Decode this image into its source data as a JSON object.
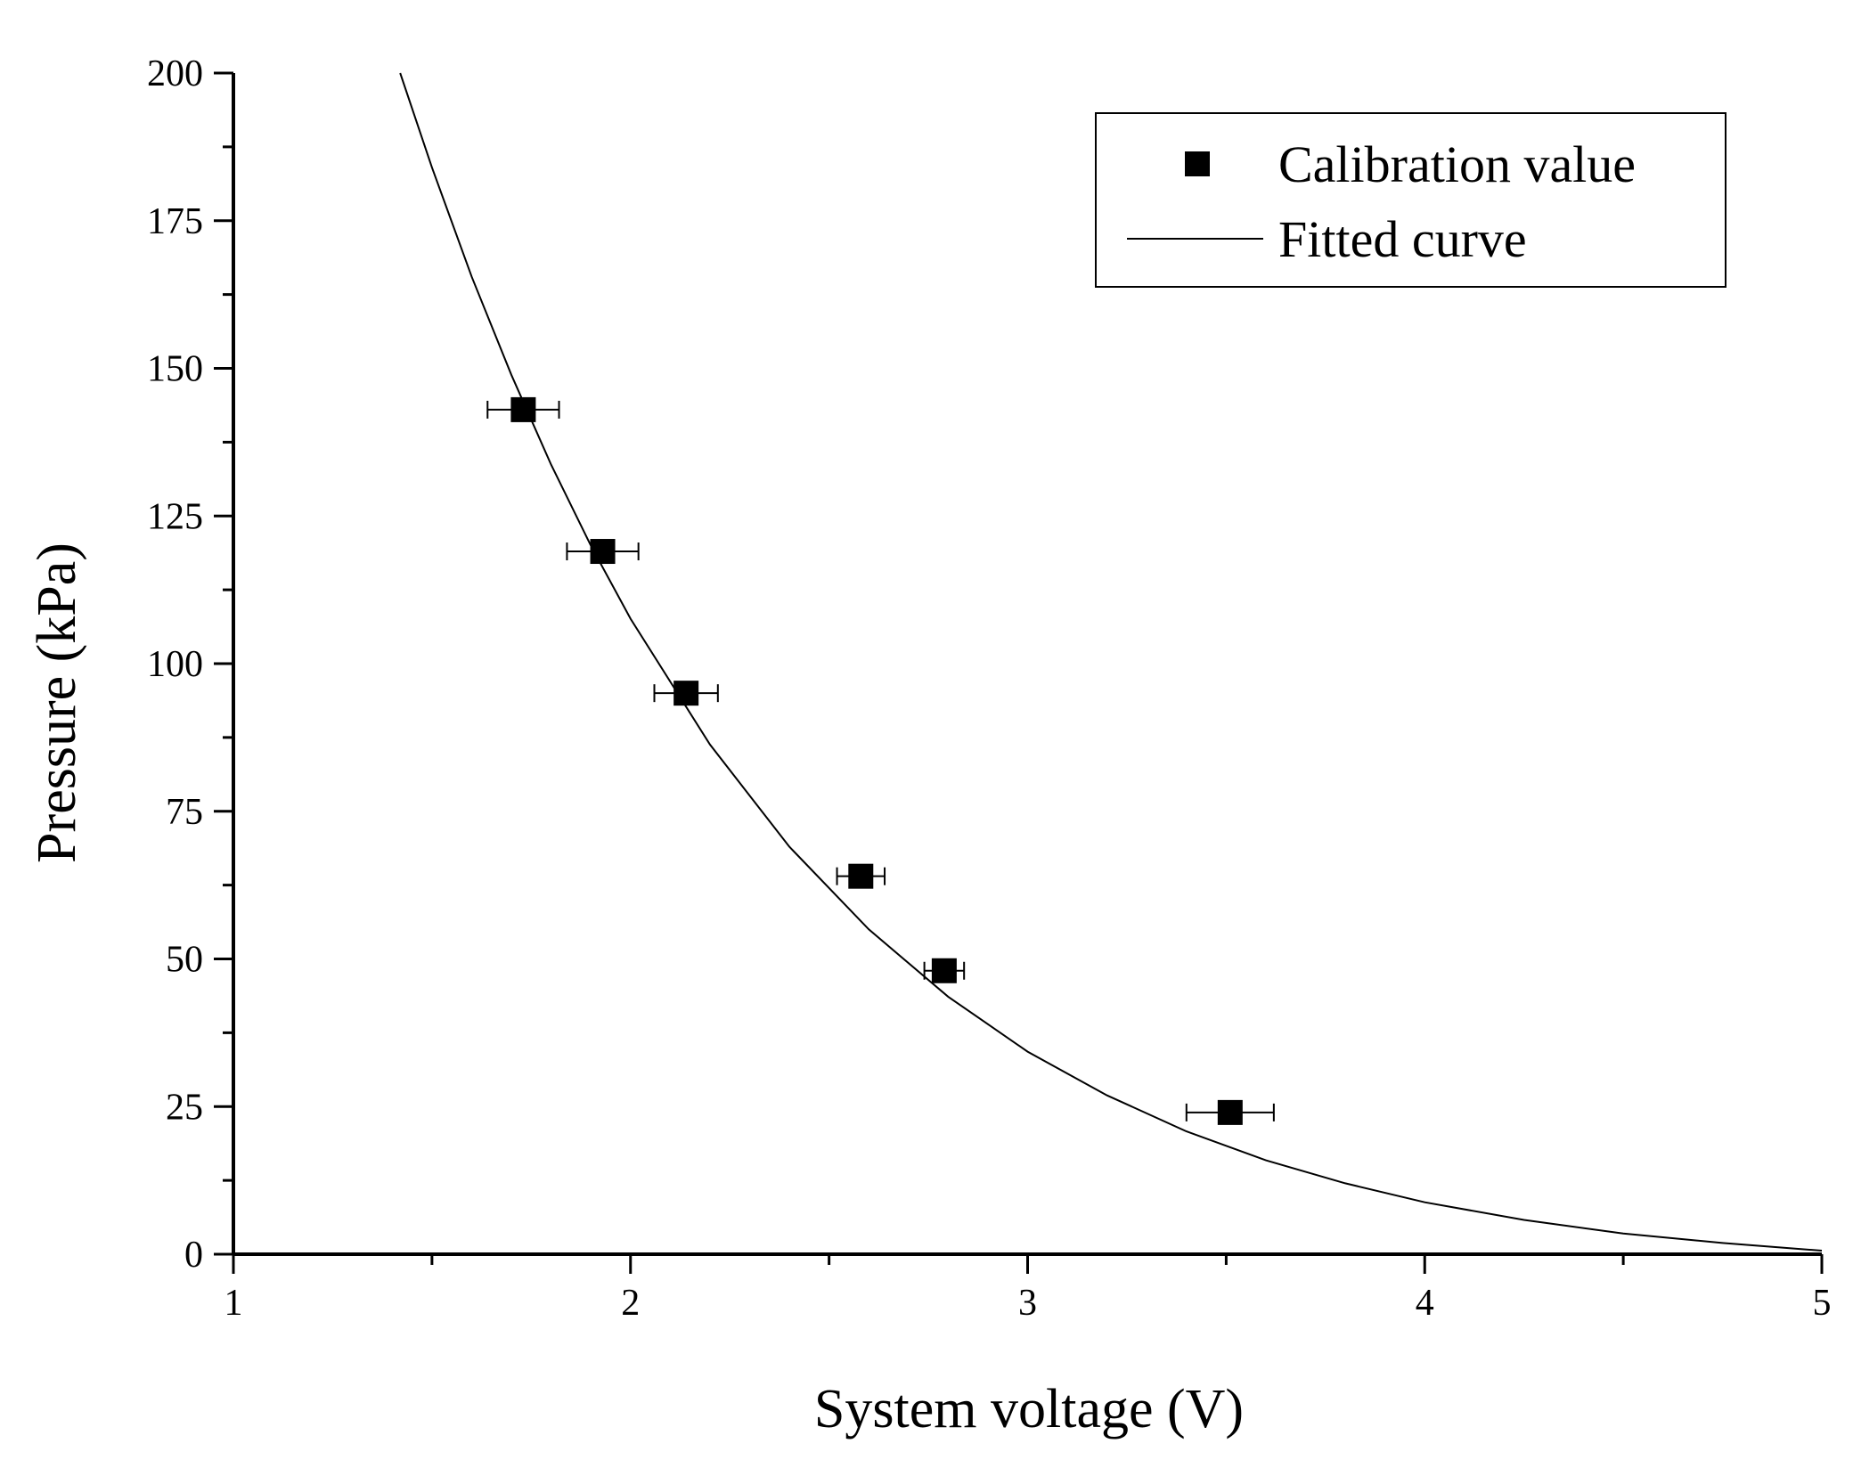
{
  "chart_data": {
    "type": "scatter",
    "title": "",
    "xlabel": "System voltage (V)",
    "ylabel": "Pressure (kPa)",
    "xlim": [
      1,
      5
    ],
    "ylim": [
      0,
      200
    ],
    "x_ticks": [
      1,
      2,
      3,
      4,
      5
    ],
    "y_ticks": [
      0,
      25,
      50,
      75,
      100,
      125,
      150,
      175,
      200
    ],
    "x_tick_labels": [
      "1",
      "2",
      "3",
      "4",
      "5"
    ],
    "y_tick_labels": [
      "0",
      "25",
      "50",
      "75",
      "100",
      "125",
      "150",
      "175",
      "200"
    ],
    "grid": false,
    "legend_position": "top-right",
    "series": [
      {
        "name": "Calibration value",
        "type": "scatter",
        "marker": "square",
        "color": "#000000",
        "x": [
          1.73,
          1.93,
          2.14,
          2.58,
          2.79,
          3.51
        ],
        "y": [
          143,
          119,
          95,
          64,
          48,
          24
        ],
        "x_error": [
          0.09,
          0.09,
          0.08,
          0.06,
          0.05,
          0.11
        ]
      },
      {
        "name": "Fitted curve",
        "type": "line",
        "color": "#000000",
        "x": [
          1.42,
          1.5,
          1.6,
          1.7,
          1.8,
          1.9,
          2.0,
          2.2,
          2.4,
          2.6,
          2.8,
          3.0,
          3.2,
          3.4,
          3.6,
          3.8,
          4.0,
          4.25,
          4.5,
          4.75,
          5.0
        ],
        "y": [
          200,
          184,
          165.5,
          148.9,
          133.7,
          120,
          107.6,
          86.3,
          69.0,
          55.0,
          43.6,
          34.3,
          26.9,
          20.8,
          15.9,
          12.0,
          8.8,
          5.8,
          3.5,
          1.9,
          0.6
        ]
      }
    ]
  }
}
